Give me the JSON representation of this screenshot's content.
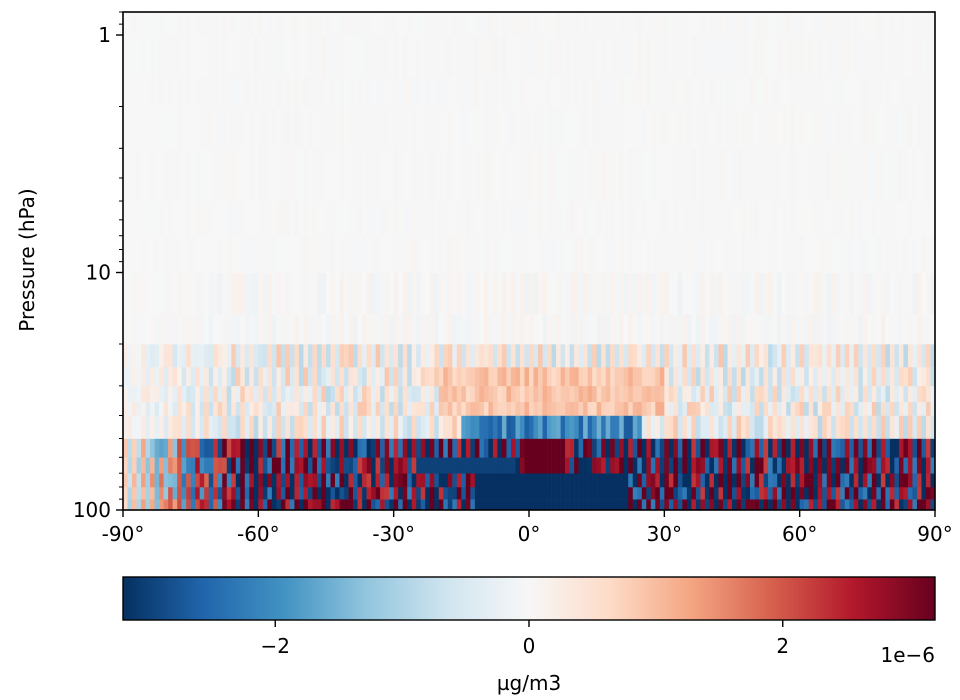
{
  "chart_data": {
    "type": "heatmap",
    "title": "…",
    "ylabel": "Pressure (hPa)",
    "xlabel": "",
    "y_scale": "log",
    "y_inverted": true,
    "xlim": [
      -90,
      90
    ],
    "ylim": [
      100,
      0.8
    ],
    "x_ticks": [
      -90,
      -60,
      -30,
      0,
      30,
      60,
      90
    ],
    "x_tick_labels": [
      "-90°",
      "-60°",
      "-30°",
      "0°",
      "30°",
      "60°",
      "90°"
    ],
    "y_ticks": [
      1,
      10,
      100
    ],
    "y_tick_labels": [
      "1",
      "10",
      "100"
    ],
    "colormap": "RdBu_r",
    "colorbar": {
      "label": "µg/m3",
      "range": [
        -3.2e-06,
        3.2e-06
      ],
      "ticks": [
        -2e-06,
        0,
        2e-06
      ],
      "tick_labels": [
        "−2",
        "0",
        "2"
      ],
      "offset_label": "1e−6",
      "colors": [
        "#053061",
        "#2166ac",
        "#4393c3",
        "#92c5de",
        "#d1e5f0",
        "#f7f7f7",
        "#fddbc7",
        "#f4a582",
        "#d6604d",
        "#b2182b",
        "#67001f"
      ]
    },
    "grid": false,
    "field_description_levels_hPa": [
      100,
      90,
      80,
      70,
      60,
      50,
      40,
      30,
      20,
      10,
      5,
      3,
      2,
      1
    ],
    "field_summary": {
      "upper_levels_1_to_20hPa": "near zero (|v| < 0.1e-6)",
      "levels_20_to_40hPa": "weak alternating anomalies, |v| ~ 0.3–0.8e-6",
      "levels_40_to_100hPa": "strong alternating positive/negative columns, |v| up to 3e-6; broad negative block near 0°–20° at 70–100 hPa; positive peak near 0°–5° at ~60 hPa"
    }
  }
}
